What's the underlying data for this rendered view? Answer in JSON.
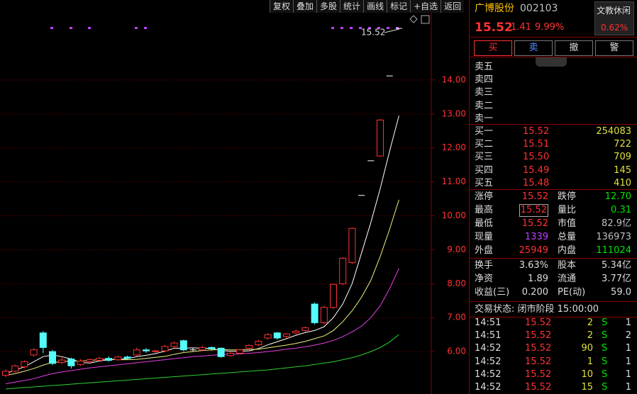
{
  "toolbar": [
    "复权",
    "叠加",
    "多股",
    "统计",
    "画线",
    "标记",
    "+自选",
    "返回"
  ],
  "chart_data": {
    "type": "candlestick",
    "candles": {
      "open": [
        5.3,
        5.42,
        5.55,
        5.9,
        6.55,
        6.0,
        5.68,
        5.78,
        5.62,
        5.7,
        5.74,
        5.8,
        5.76,
        5.84,
        5.9,
        6.05,
        6.0,
        6.02,
        6.15,
        6.32,
        6.05,
        6.05,
        6.12,
        6.1,
        5.88,
        5.95,
        6.1,
        6.2,
        6.4,
        6.55,
        6.45,
        6.55,
        6.62,
        7.4,
        6.85,
        7.3,
        8.0,
        8.62,
        10.6,
        11.62,
        11.76,
        14.12,
        15.52
      ],
      "close": [
        5.42,
        5.58,
        5.7,
        6.05,
        6.12,
        5.65,
        5.75,
        5.58,
        5.72,
        5.76,
        5.8,
        5.74,
        5.84,
        5.8,
        6.05,
        6.02,
        6.02,
        6.15,
        6.25,
        6.05,
        6.05,
        6.12,
        6.08,
        5.85,
        5.95,
        6.05,
        6.18,
        6.3,
        6.5,
        6.4,
        6.52,
        6.6,
        6.7,
        6.85,
        7.3,
        7.98,
        8.75,
        9.63,
        10.6,
        11.62,
        12.82,
        14.12,
        15.52
      ],
      "high": [
        5.48,
        5.62,
        5.74,
        6.1,
        6.6,
        6.05,
        5.85,
        5.82,
        5.78,
        5.8,
        5.84,
        5.86,
        5.88,
        5.88,
        6.12,
        6.1,
        6.05,
        6.2,
        6.3,
        6.35,
        6.1,
        6.18,
        6.15,
        6.12,
        6.0,
        6.08,
        6.22,
        6.35,
        6.55,
        6.58,
        6.55,
        6.65,
        6.74,
        7.45,
        7.35,
        8.0,
        8.78,
        9.65,
        10.6,
        11.62,
        12.85,
        14.12,
        15.52
      ],
      "low": [
        5.25,
        5.38,
        5.5,
        5.85,
        5.95,
        5.6,
        5.62,
        5.5,
        5.58,
        5.66,
        5.7,
        5.7,
        5.72,
        5.76,
        5.86,
        5.96,
        5.95,
        5.98,
        6.1,
        6.0,
        6.0,
        6.02,
        6.02,
        5.82,
        5.85,
        5.92,
        6.05,
        6.15,
        6.35,
        6.35,
        6.4,
        6.5,
        6.58,
        6.8,
        6.8,
        7.25,
        7.95,
        8.58,
        10.6,
        11.62,
        11.74,
        14.12,
        15.52
      ]
    },
    "series": [
      {
        "name": "MA5",
        "color": "#ffffff",
        "values": [
          5.35,
          5.45,
          5.55,
          5.7,
          5.85,
          5.9,
          5.85,
          5.78,
          5.68,
          5.66,
          5.72,
          5.76,
          5.77,
          5.79,
          5.85,
          5.89,
          5.94,
          6.01,
          6.1,
          6.1,
          6.11,
          6.1,
          6.09,
          6.03,
          6.01,
          6.01,
          6.02,
          6.09,
          6.2,
          6.29,
          6.38,
          6.48,
          6.56,
          6.62,
          6.73,
          7.0,
          7.4,
          8.0,
          8.9,
          9.8,
          10.8,
          11.9,
          12.95
        ]
      },
      {
        "name": "MA10",
        "color": "#f0f080",
        "values": [
          5.3,
          5.35,
          5.42,
          5.5,
          5.6,
          5.68,
          5.7,
          5.72,
          5.72,
          5.74,
          5.76,
          5.78,
          5.76,
          5.76,
          5.77,
          5.8,
          5.83,
          5.86,
          5.92,
          5.97,
          6.0,
          6.03,
          6.05,
          6.06,
          6.05,
          6.05,
          6.06,
          6.07,
          6.11,
          6.15,
          6.19,
          6.24,
          6.3,
          6.38,
          6.46,
          6.62,
          6.88,
          7.2,
          7.6,
          8.1,
          8.8,
          9.6,
          10.47
        ]
      },
      {
        "name": "MA20",
        "color": "#e040e0",
        "values": [
          5.05,
          5.1,
          5.15,
          5.2,
          5.28,
          5.35,
          5.4,
          5.44,
          5.48,
          5.52,
          5.55,
          5.58,
          5.61,
          5.64,
          5.67,
          5.7,
          5.73,
          5.76,
          5.79,
          5.82,
          5.85,
          5.87,
          5.89,
          5.91,
          5.92,
          5.93,
          5.95,
          5.97,
          6.0,
          6.03,
          6.07,
          6.1,
          6.14,
          6.19,
          6.25,
          6.33,
          6.44,
          6.58,
          6.75,
          7.0,
          7.35,
          7.85,
          8.45
        ]
      },
      {
        "name": "MA60",
        "color": "#30d030",
        "values": [
          4.9,
          4.92,
          4.94,
          4.96,
          4.98,
          5.0,
          5.02,
          5.04,
          5.06,
          5.08,
          5.1,
          5.12,
          5.14,
          5.16,
          5.18,
          5.2,
          5.22,
          5.24,
          5.26,
          5.28,
          5.3,
          5.32,
          5.34,
          5.36,
          5.38,
          5.4,
          5.42,
          5.44,
          5.46,
          5.49,
          5.52,
          5.55,
          5.58,
          5.62,
          5.66,
          5.7,
          5.76,
          5.82,
          5.9,
          6.0,
          6.12,
          6.28,
          6.5
        ]
      }
    ],
    "ylim": [
      4.75,
      15.98
    ],
    "yticks": [
      {
        "value": 6,
        "label": "6.00"
      },
      {
        "value": 7,
        "label": "7.00"
      },
      {
        "value": 8,
        "label": "8.00"
      },
      {
        "value": 9,
        "label": "9.00"
      },
      {
        "value": 10,
        "label": "10.00"
      },
      {
        "value": 11,
        "label": "11.00"
      },
      {
        "value": 12,
        "label": "12.00"
      },
      {
        "value": 13,
        "label": "13.00"
      },
      {
        "value": 14,
        "label": "14.00"
      }
    ],
    "grid": true,
    "up_color": "#ff3232",
    "down_color": "#54fcfc",
    "flat_color": "#ffffff",
    "annotation": "15.52"
  },
  "quote": {
    "name": "广博股份",
    "code": "002103",
    "sector": "文教休闲",
    "sector_change": "0.62%",
    "price": "15.52",
    "change": "1.41",
    "change_pct": "9.99%"
  },
  "buttons": [
    "买",
    "卖",
    "撤",
    "警"
  ],
  "asks": [
    "卖五",
    "卖四",
    "卖三",
    "卖二",
    "卖一"
  ],
  "bids": [
    [
      "买一",
      "15.52",
      "254083"
    ],
    [
      "买二",
      "15.51",
      "722"
    ],
    [
      "买三",
      "15.50",
      "709"
    ],
    [
      "买四",
      "15.49",
      "145"
    ],
    [
      "买五",
      "15.48",
      "410"
    ]
  ],
  "stats": [
    [
      "涨停",
      "15.52",
      "跌停",
      "12.70"
    ],
    [
      "最高",
      "15.52",
      "量比",
      "0.31"
    ],
    [
      "最低",
      "15.52",
      "市值",
      "82.9亿"
    ],
    [
      "现量",
      "1339",
      "总量",
      "136973"
    ],
    [
      "外盘",
      "25949",
      "内盘",
      "111024"
    ]
  ],
  "stats_colors": [
    [
      "#ff3232",
      "#00e600"
    ],
    [
      "#ff3232",
      "#00e600"
    ],
    [
      "#ff3232",
      "#c0c0c0"
    ],
    [
      "#c040ff",
      "#c0c0c0"
    ],
    [
      "#ff3232",
      "#00e600"
    ]
  ],
  "finance": [
    [
      "换手",
      "3.63%",
      "股本",
      "5.34亿"
    ],
    [
      "净资",
      "1.89",
      "流通",
      "3.77亿"
    ],
    [
      "收益(三)",
      "0.200",
      "PE(动)",
      "59.0"
    ]
  ],
  "status": "交易状态: 闭市阶段 15:00:00",
  "ticks": [
    [
      "14:51",
      "15.52",
      "2",
      "S",
      "1"
    ],
    [
      "14:51",
      "15.52",
      "2",
      "S",
      "2"
    ],
    [
      "14:52",
      "15.52",
      "90",
      "S",
      "1"
    ],
    [
      "14:52",
      "15.52",
      "1",
      "S",
      "1"
    ],
    [
      "14:52",
      "15.52",
      "10",
      "S",
      "1"
    ],
    [
      "14:52",
      "15.52",
      "15",
      "S",
      "1"
    ]
  ]
}
